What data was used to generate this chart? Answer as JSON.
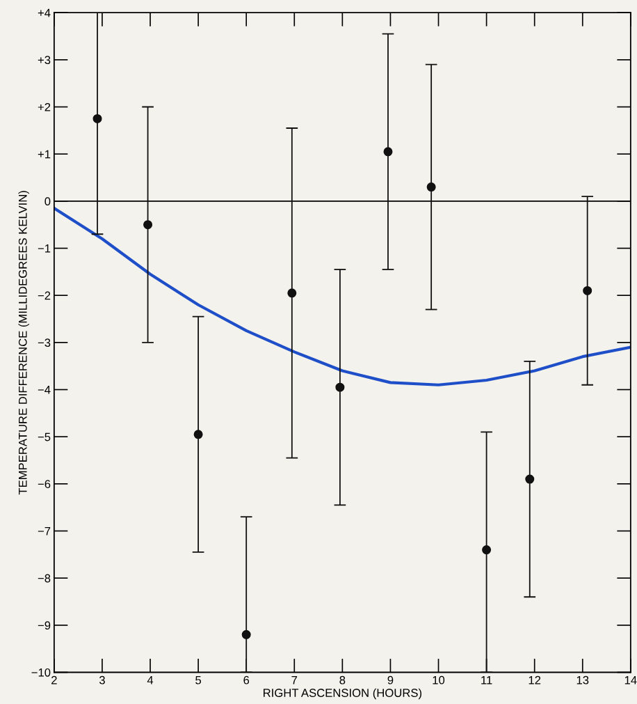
{
  "chart_data": {
    "type": "scatter",
    "xlabel": "RIGHT ASCENSION (HOURS)",
    "ylabel": "TEMPERATURE DIFFERENCE (MILLIDEGREES KELVIN)",
    "xlim": [
      2,
      14
    ],
    "ylim": [
      -10,
      4
    ],
    "xticks": [
      2,
      3,
      4,
      5,
      6,
      7,
      8,
      9,
      10,
      11,
      12,
      13,
      14
    ],
    "yticks": [
      {
        "value": 4,
        "label": "+4"
      },
      {
        "value": 3,
        "label": "+3"
      },
      {
        "value": 2,
        "label": "+2"
      },
      {
        "value": 1,
        "label": "+1"
      },
      0,
      {
        "value": -1,
        "label": "−1"
      },
      {
        "value": -2,
        "label": "−2"
      },
      {
        "value": -3,
        "label": "−3"
      },
      {
        "value": -4,
        "label": "−4"
      },
      {
        "value": -5,
        "label": "−5"
      },
      {
        "value": -6,
        "label": "−6"
      },
      {
        "value": -7,
        "label": "−7"
      },
      {
        "value": -8,
        "label": "−8"
      },
      {
        "value": -9,
        "label": "−9"
      },
      {
        "value": -10,
        "label": "−10"
      }
    ],
    "grid": false,
    "legend": false,
    "ref_lines": [
      {
        "axis": "y",
        "value": 0,
        "color": "#000000"
      }
    ],
    "series": [
      {
        "color": "#111111",
        "marker": "circle",
        "x": [
          2.9,
          3.95,
          5.0,
          6.0,
          6.95,
          7.95,
          8.95,
          9.85,
          11.0,
          11.9,
          13.1
        ],
        "values": [
          1.75,
          -0.5,
          -4.95,
          -9.2,
          -1.95,
          -3.95,
          1.05,
          0.3,
          -7.4,
          -5.9,
          -1.9
        ],
        "errors": [
          [
            -0.7,
            4.0
          ],
          2.5,
          2.5,
          [
            -10,
            -6.7
          ],
          3.5,
          2.5,
          2.5,
          2.6,
          [
            -10,
            -4.9
          ],
          2.5,
          2.0
        ]
      },
      {
        "type": "line",
        "color": "#1f4fc8",
        "marker": "none",
        "line_style": "solid",
        "x": [
          2,
          3,
          4,
          5,
          6,
          7,
          8,
          9,
          10,
          11,
          12,
          13,
          14
        ],
        "values": [
          -0.15,
          -0.8,
          -1.55,
          -2.2,
          -2.75,
          -3.2,
          -3.6,
          -3.85,
          -3.9,
          -3.8,
          -3.6,
          -3.3,
          -3.1
        ]
      }
    ]
  }
}
